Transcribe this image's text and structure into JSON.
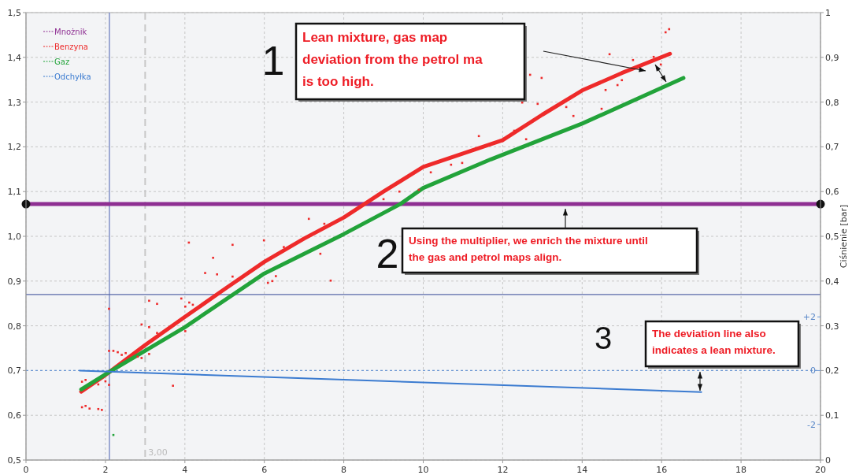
{
  "chart_data": {
    "type": "line",
    "y2label": "Ciśnienie [bar]",
    "xlim": [
      0,
      20
    ],
    "xticks": [
      0,
      2,
      4,
      6,
      8,
      10,
      12,
      14,
      16,
      18,
      20
    ],
    "ylim": [
      0.5,
      1.5
    ],
    "yticks": [
      {
        "value": 0.5,
        "label": "0,5"
      },
      {
        "value": 0.6,
        "label": "0,6"
      },
      {
        "value": 0.7,
        "label": "0,7"
      },
      {
        "value": 0.8,
        "label": "0,8"
      },
      {
        "value": 0.9,
        "label": "0,9"
      },
      {
        "value": 1.0,
        "label": "1,0"
      },
      {
        "value": 1.1,
        "label": "1,1"
      },
      {
        "value": 1.2,
        "label": "1,2"
      },
      {
        "value": 1.3,
        "label": "1,3"
      },
      {
        "value": 1.4,
        "label": "1,4"
      },
      {
        "value": 1.5,
        "label": "1,5"
      }
    ],
    "y2lim": [
      0,
      1
    ],
    "y2ticks": [
      0,
      {
        "value": 0.1,
        "label": "0,1"
      },
      {
        "value": 0.2,
        "label": "0,2"
      },
      {
        "value": 0.3,
        "label": "0,3"
      },
      {
        "value": 0.4,
        "label": "0,4"
      },
      {
        "value": 0.5,
        "label": "0,5"
      },
      {
        "value": 0.6,
        "label": "0,6"
      },
      {
        "value": 0.7,
        "label": "0,7"
      },
      {
        "value": 0.8,
        "label": "0,8"
      },
      {
        "value": 0.9,
        "label": "0,9"
      },
      1
    ],
    "y3lim": [
      -3.33,
      13.33
    ],
    "y3ticks": [
      {
        "value": 2,
        "label": "+2"
      },
      0,
      -2
    ],
    "grid": true,
    "legend": "top left",
    "series": [
      {
        "name": "Mnożnik",
        "color": "#8e2f92",
        "marker": "circle",
        "x": [
          0,
          20
        ],
        "values": [
          1.072,
          1.072
        ]
      },
      {
        "name": "Benzyna",
        "color": "#ee2a2a",
        "x": [
          1.39,
          2,
          3,
          4,
          5,
          6,
          7,
          8,
          9,
          10,
          11,
          12,
          13,
          14,
          15,
          16.21
        ],
        "values": [
          0.653,
          0.69,
          0.757,
          0.82,
          0.882,
          0.943,
          0.995,
          1.042,
          1.1,
          1.155,
          1.185,
          1.215,
          1.272,
          1.326,
          1.365,
          1.408
        ]
      },
      {
        "name": "Gaz",
        "color": "#22a33a",
        "x": [
          1.39,
          2.1,
          4,
          6,
          8,
          9.42,
          10,
          11.7,
          14,
          16.55
        ],
        "values": [
          0.658,
          0.697,
          0.797,
          0.917,
          1.005,
          1.072,
          1.108,
          1.172,
          1.252,
          1.354
        ]
      },
      {
        "name": "Odchyłka",
        "color": "#3b7bd0",
        "axis": "y3",
        "x": [
          1.35,
          17
        ],
        "values": [
          0,
          -0.8
        ]
      },
      {
        "color": "#ee2a2a",
        "type": "scatter",
        "marker": "square",
        "x": [
          1.41,
          1.5,
          1.6,
          1.82,
          1.91,
          1.41,
          1.5,
          1.82,
          2.0,
          2.09,
          2.09,
          2.09,
          2.2,
          2.31,
          2.41,
          2.51,
          2.81,
          2.91,
          2.91,
          3.1,
          3.1,
          3.1,
          3.3,
          3.3,
          3.7,
          3.91,
          4.01,
          4.01,
          4.11,
          4.2,
          4.1,
          4.51,
          4.71,
          4.81,
          5.2,
          5.2,
          5.99,
          6.09,
          6.29,
          6.2,
          6.49,
          7.67,
          7.41,
          7.12,
          7.51,
          9.0,
          9.4,
          9.89,
          10.19,
          10.7,
          10.98,
          11.4,
          11.99,
          12.59,
          12.29,
          12.49,
          12.69,
          12.98,
          12.88,
          13.6,
          13.78,
          14.49,
          14.59,
          14.89,
          15.0,
          14.69,
          15.28,
          15.8,
          15.98,
          16.1,
          16.19
        ],
        "values": [
          0.618,
          0.621,
          0.615,
          0.614,
          0.612,
          0.675,
          0.679,
          0.669,
          0.676,
          0.668,
          0.838,
          0.744,
          0.744,
          0.741,
          0.735,
          0.739,
          0.731,
          0.728,
          0.803,
          0.856,
          0.797,
          0.737,
          0.849,
          0.784,
          0.666,
          0.861,
          0.843,
          0.788,
          0.852,
          0.847,
          0.986,
          0.918,
          0.952,
          0.915,
          0.981,
          0.91,
          0.991,
          0.896,
          0.911,
          0.9,
          0.976,
          0.901,
          0.961,
          1.039,
          1.028,
          1.083,
          1.1,
          1.104,
          1.143,
          1.16,
          1.164,
          1.224,
          1.213,
          1.217,
          1.236,
          1.299,
          1.361,
          1.354,
          1.296,
          1.289,
          1.269,
          1.285,
          1.327,
          1.338,
          1.349,
          1.407,
          1.394,
          1.401,
          1.384,
          1.456,
          1.463
        ]
      },
      {
        "color": "#22a33a",
        "type": "scatter",
        "marker": "square",
        "x": [
          2.2
        ],
        "values": [
          0.556
        ]
      }
    ],
    "ref_lines": [
      {
        "axis": "x",
        "value": 2.1,
        "color": "#6e7fc0",
        "line_style": "solid"
      },
      {
        "axis": "x",
        "value": 3,
        "label": "3,00",
        "color": "#c8c8c8",
        "line_style": "dashed"
      },
      {
        "axis": "y",
        "value": 0.87,
        "color": "#5868a8",
        "line_style": "solid"
      },
      {
        "axis": "y",
        "value": 0.7,
        "color": "#6d97d4",
        "line_style": "dotted"
      }
    ],
    "annotations": [
      "1",
      "Lean mixture, gas map deviation from the petrol ma is too high.",
      "2",
      "Using the multiplier, we enrich the mixture until the gas and petrol maps align.",
      "3",
      "The deviation line also indicates a lean mixture."
    ]
  }
}
